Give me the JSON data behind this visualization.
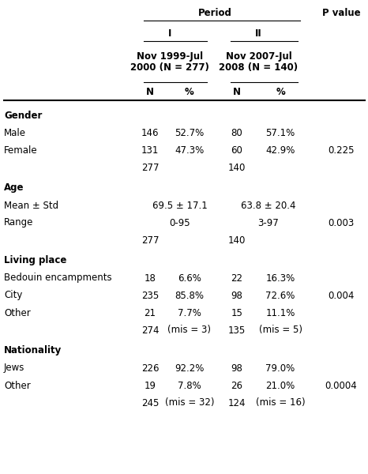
{
  "title_period": "Period",
  "title_pvalue": "P value",
  "col_I": "I",
  "col_II": "II",
  "period_I_label": "Nov 1999-Jul\n2000 (N = 277)",
  "period_II_label": "Nov 2007-Jul\n2008 (N = 140)",
  "sections": [
    {
      "header": "Gender",
      "rows": [
        {
          "label": "Male",
          "n1": "146",
          "p1": "52.7%",
          "n2": "80",
          "p2": "57.1%",
          "pval": "",
          "span": false
        },
        {
          "label": "Female",
          "n1": "131",
          "p1": "47.3%",
          "n2": "60",
          "p2": "42.9%",
          "pval": "0.225",
          "span": false
        },
        {
          "label": "",
          "n1": "277",
          "p1": "",
          "n2": "140",
          "p2": "",
          "pval": "",
          "span": false
        }
      ]
    },
    {
      "header": "Age",
      "rows": [
        {
          "label": "Mean ± Std",
          "n1": "",
          "p1": "69.5 ± 17.1",
          "n2": "",
          "p2": "63.8 ± 20.4",
          "pval": "",
          "span": true
        },
        {
          "label": "Range",
          "n1": "",
          "p1": "0-95",
          "n2": "",
          "p2": "3-97",
          "pval": "0.003",
          "span": true
        },
        {
          "label": "",
          "n1": "277",
          "p1": "",
          "n2": "140",
          "p2": "",
          "pval": "",
          "span": false
        }
      ]
    },
    {
      "header": "Living place",
      "rows": [
        {
          "label": "Bedouin encampments",
          "n1": "18",
          "p1": "6.6%",
          "n2": "22",
          "p2": "16.3%",
          "pval": "",
          "span": false
        },
        {
          "label": "City",
          "n1": "235",
          "p1": "85.8%",
          "n2": "98",
          "p2": "72.6%",
          "pval": "0.004",
          "span": false
        },
        {
          "label": "Other",
          "n1": "21",
          "p1": "7.7%",
          "n2": "15",
          "p2": "11.1%",
          "pval": "",
          "span": false
        },
        {
          "label": "",
          "n1": "274",
          "p1": "(mis = 3)",
          "n2": "135",
          "p2": "(mis = 5)",
          "pval": "",
          "span": false
        }
      ]
    },
    {
      "header": "Nationality",
      "rows": [
        {
          "label": "Jews",
          "n1": "226",
          "p1": "92.2%",
          "n2": "98",
          "p2": "79.0%",
          "pval": "",
          "span": false
        },
        {
          "label": "Other",
          "n1": "19",
          "p1": "7.8%",
          "n2": "26",
          "p2": "21.0%",
          "pval": "0.0004",
          "span": false
        },
        {
          "label": "",
          "n1": "245",
          "p1": "(mis = 32)",
          "n2": "124",
          "p2": "(mis = 16)",
          "pval": "",
          "span": false
        }
      ]
    }
  ],
  "bg_color": "#ffffff",
  "line_color": "#000000",
  "fs": 8.5
}
